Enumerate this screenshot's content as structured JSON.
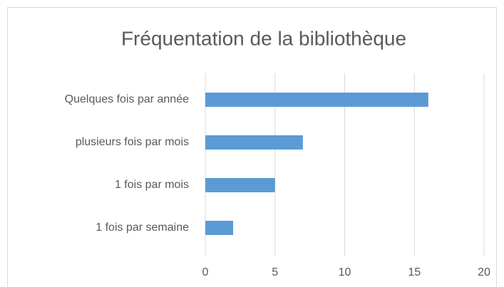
{
  "chart_data": {
    "type": "bar",
    "orientation": "horizontal",
    "title": "Fréquentation de la bibliothèque",
    "categories": [
      "Quelques fois par année",
      "plusieurs fois par mois",
      "1 fois par mois",
      "1 fois par semaine"
    ],
    "values": [
      16,
      7,
      5,
      2
    ],
    "color": "#5b9bd5",
    "xlim": [
      0,
      20
    ],
    "xticks": [
      0,
      5,
      10,
      15,
      20
    ],
    "grid": true
  }
}
